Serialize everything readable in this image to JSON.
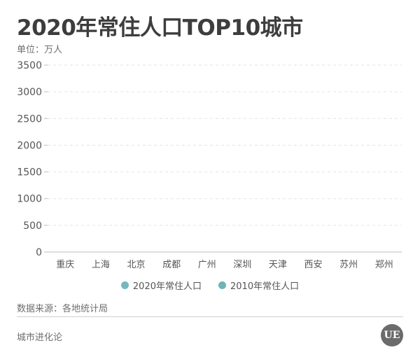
{
  "header": {
    "title": "2020年常住人口TOP10城市",
    "unit": "单位：万人"
  },
  "chart_data": {
    "type": "bar",
    "categories": [
      "重庆",
      "上海",
      "北京",
      "成都",
      "广州",
      "深圳",
      "天津",
      "西安",
      "苏州",
      "郑州"
    ],
    "series": [
      {
        "name": "2020年常住人口",
        "color": "#78b7bd",
        "values": [
          0,
          0,
          0,
          0,
          0,
          0,
          0,
          0,
          0,
          0
        ]
      },
      {
        "name": "2010年常住人口",
        "color": "#6fb3b8",
        "values": [
          0,
          0,
          0,
          0,
          0,
          0,
          0,
          0,
          0,
          0
        ]
      }
    ],
    "ylim": [
      0,
      3500
    ],
    "yticks": [
      "0",
      "500",
      "1000",
      "1500",
      "2000",
      "2500",
      "3000",
      "3500"
    ],
    "grid": true,
    "legend_position": "bottom-center"
  },
  "footer": {
    "source": "数据来源：各地统计局",
    "brand": "城市进化论",
    "logo_text": "UE"
  }
}
